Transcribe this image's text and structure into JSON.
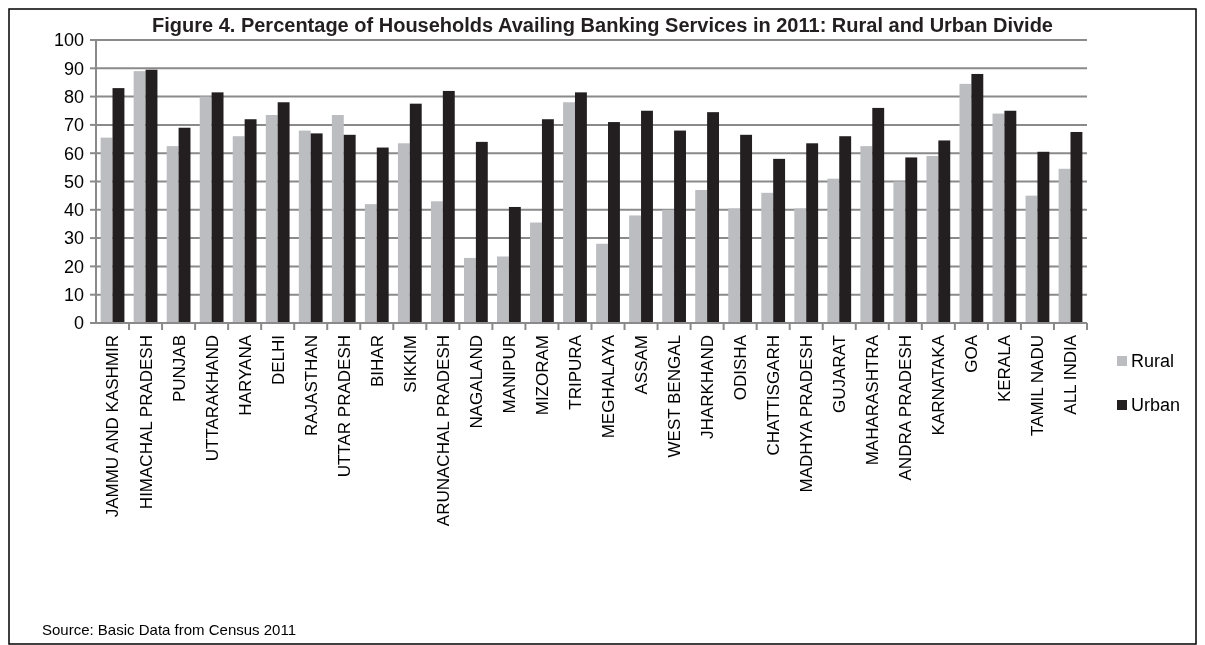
{
  "chart_data": {
    "type": "bar",
    "title": "Figure 4. Percentage of Households Availing Banking Services in 2011: Rural and Urban Divide",
    "categories": [
      "JAMMU AND KASHMIR",
      "HIMACHAL PRADESH",
      "PUNJAB",
      "UTTARAKHAND",
      "HARYANA",
      "DELHI",
      "RAJASTHAN",
      "UTTAR PRADESH",
      "BIHAR",
      "SIKKIM",
      "ARUNACHAL PRADESH",
      "NAGALAND",
      "MANIPUR",
      "MIZORAM",
      "TRIPURA",
      "MEGHALAYA",
      "ASSAM",
      "WEST BENGAL",
      "JHARKHAND",
      "ODISHA",
      "CHATTISGARH",
      "MADHYA PRADESH",
      "GUJARAT",
      "MAHARASHTRA",
      "ANDRA PRADESH",
      "KARNATAKA",
      "GOA",
      "KERALA",
      "TAMIL NADU",
      "ALL INDIA"
    ],
    "series": [
      {
        "name": "Rural",
        "color": "#bcbdc0",
        "values": [
          65.5,
          89,
          62.5,
          80,
          66,
          73.5,
          68,
          73.5,
          42,
          63.5,
          43,
          23,
          23.5,
          35.5,
          78,
          28,
          38,
          40,
          47,
          40.5,
          46,
          40.5,
          51,
          62.5,
          50,
          59,
          84.5,
          74,
          45,
          54.5
        ]
      },
      {
        "name": "Urban",
        "color": "#231f20",
        "values": [
          83,
          89.5,
          69,
          81.5,
          72,
          78,
          67,
          66.5,
          62,
          77.5,
          82,
          64,
          41,
          72,
          81.5,
          71,
          75,
          68,
          74.5,
          66.5,
          58,
          63.5,
          66,
          76,
          58.5,
          64.5,
          88,
          75,
          60.5,
          67.5
        ]
      }
    ],
    "ylim": [
      0,
      100
    ],
    "yticks": [
      0,
      10,
      20,
      30,
      40,
      50,
      60,
      70,
      80,
      90,
      100
    ],
    "grid": "y",
    "legend": "right",
    "annotations": [
      "Source: Basic Data from Census 2011"
    ]
  }
}
